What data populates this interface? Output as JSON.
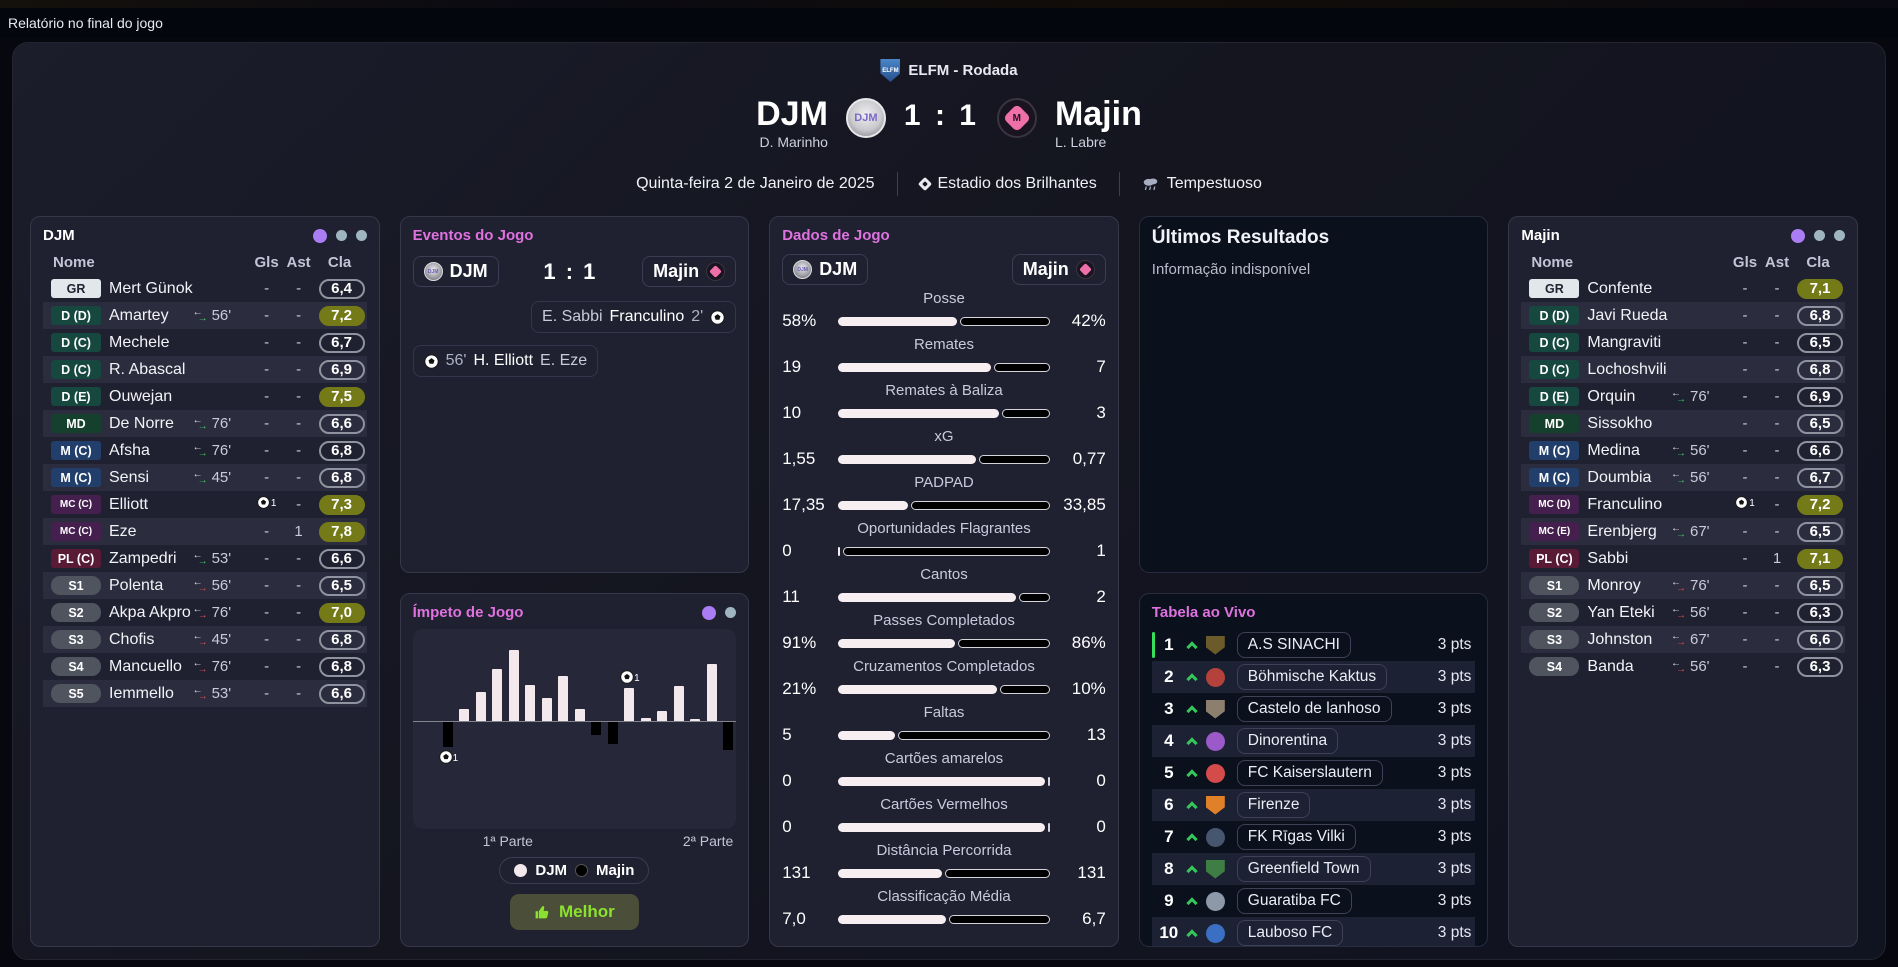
{
  "top_bar": {
    "title": "Relatório no final do jogo"
  },
  "header": {
    "competition": "ELFM - Rodada",
    "competition_badge": "ELFM",
    "home": {
      "name": "DJM",
      "manager": "D. Marinho",
      "crest_text": "DJM"
    },
    "away": {
      "name": "Majin",
      "manager": "L. Labre",
      "crest_text": "M"
    },
    "score": "1 : 1",
    "date": "Quinta-feira 2 de Janeiro de 2025",
    "venue": "Estadio dos Brilhantes",
    "weather": "Tempestuoso"
  },
  "home_squad": {
    "title": "DJM",
    "columns": {
      "name": "Nome",
      "gls": "Gls",
      "ast": "Ast",
      "cla": "Cla"
    },
    "players": [
      {
        "pos": "GR",
        "pos_class": "gr",
        "name": "Mert Günok",
        "gls": "-",
        "ast": "-",
        "cla": "6,4"
      },
      {
        "pos": "D (D)",
        "pos_class": "d",
        "name": "Amartey",
        "sub": "56'",
        "sub_dir": "off",
        "gls": "-",
        "ast": "-",
        "cla": "7,2",
        "cla_class": "hi"
      },
      {
        "pos": "D (C)",
        "pos_class": "d",
        "name": "Mechele",
        "gls": "-",
        "ast": "-",
        "cla": "6,7"
      },
      {
        "pos": "D (C)",
        "pos_class": "d",
        "name": "R. Abascal",
        "gls": "-",
        "ast": "-",
        "cla": "6,9"
      },
      {
        "pos": "D (E)",
        "pos_class": "d",
        "name": "Ouwejan",
        "gls": "-",
        "ast": "-",
        "cla": "7,5",
        "cla_class": "hi"
      },
      {
        "pos": "MD",
        "pos_class": "md",
        "name": "De Norre",
        "sub": "76'",
        "sub_dir": "off",
        "gls": "-",
        "ast": "-",
        "cla": "6,6"
      },
      {
        "pos": "M (C)",
        "pos_class": "m",
        "name": "Afsha",
        "sub": "76'",
        "sub_dir": "off",
        "gls": "-",
        "ast": "-",
        "cla": "6,8"
      },
      {
        "pos": "M (C)",
        "pos_class": "m",
        "name": "Sensi",
        "sub": "45'",
        "sub_dir": "off",
        "gls": "-",
        "ast": "-",
        "cla": "6,8"
      },
      {
        "pos": "MC (C)",
        "pos_class": "mc",
        "name": "Elliott",
        "gls_ball": true,
        "gls_n": "1",
        "ast": "-",
        "cla": "7,3",
        "cla_class": "hi"
      },
      {
        "pos": "MC (C)",
        "pos_class": "mc",
        "name": "Eze",
        "gls": "-",
        "ast": "1",
        "cla": "7,8",
        "cla_class": "hi"
      },
      {
        "pos": "PL (C)",
        "pos_class": "pl",
        "name": "Zampedri",
        "sub": "53'",
        "sub_dir": "off",
        "gls": "-",
        "ast": "-",
        "cla": "6,6"
      },
      {
        "pos": "S1",
        "pos_class": "s",
        "name": "Polenta",
        "sub": "56'",
        "sub_dir": "on",
        "gls": "-",
        "ast": "-",
        "cla": "6,5"
      },
      {
        "pos": "S2",
        "pos_class": "s",
        "name": "Akpa Akpro",
        "sub": "76'",
        "sub_dir": "on",
        "gls": "-",
        "ast": "-",
        "cla": "7,0",
        "cla_class": "hi"
      },
      {
        "pos": "S3",
        "pos_class": "s",
        "name": "Chofis",
        "sub": "45'",
        "sub_dir": "on",
        "gls": "-",
        "ast": "-",
        "cla": "6,8"
      },
      {
        "pos": "S4",
        "pos_class": "s",
        "name": "Mancuello",
        "sub": "76'",
        "sub_dir": "on",
        "gls": "-",
        "ast": "-",
        "cla": "6,8"
      },
      {
        "pos": "S5",
        "pos_class": "s",
        "name": "Iemmello",
        "sub": "53'",
        "sub_dir": "on",
        "gls": "-",
        "ast": "-",
        "cla": "6,6"
      }
    ]
  },
  "away_squad": {
    "title": "Majin",
    "columns": {
      "name": "Nome",
      "gls": "Gls",
      "ast": "Ast",
      "cla": "Cla"
    },
    "players": [
      {
        "pos": "GR",
        "pos_class": "gr",
        "name": "Confente",
        "gls": "-",
        "ast": "-",
        "cla": "7,1",
        "cla_class": "hi"
      },
      {
        "pos": "D (D)",
        "pos_class": "d",
        "name": "Javi Rueda",
        "gls": "-",
        "ast": "-",
        "cla": "6,8"
      },
      {
        "pos": "D (C)",
        "pos_class": "d",
        "name": "Mangraviti",
        "gls": "-",
        "ast": "-",
        "cla": "6,5"
      },
      {
        "pos": "D (C)",
        "pos_class": "d",
        "name": "Lochoshvili",
        "gls": "-",
        "ast": "-",
        "cla": "6,8"
      },
      {
        "pos": "D (E)",
        "pos_class": "d",
        "name": "Orquin",
        "sub": "76'",
        "sub_dir": "off",
        "gls": "-",
        "ast": "-",
        "cla": "6,9"
      },
      {
        "pos": "MD",
        "pos_class": "md",
        "name": "Sissokho",
        "gls": "-",
        "ast": "-",
        "cla": "6,5"
      },
      {
        "pos": "M (C)",
        "pos_class": "m",
        "name": "Medina",
        "sub": "56'",
        "sub_dir": "off",
        "gls": "-",
        "ast": "-",
        "cla": "6,6"
      },
      {
        "pos": "M (C)",
        "pos_class": "m",
        "name": "Doumbia",
        "sub": "56'",
        "sub_dir": "off",
        "gls": "-",
        "ast": "-",
        "cla": "6,7"
      },
      {
        "pos": "MC (D)",
        "pos_class": "mc",
        "name": "Franculino",
        "gls_ball": true,
        "gls_n": "1",
        "ast": "-",
        "cla": "7,2",
        "cla_class": "hi"
      },
      {
        "pos": "MC (E)",
        "pos_class": "mc",
        "name": "Erenbjerg",
        "sub": "67'",
        "sub_dir": "off",
        "gls": "-",
        "ast": "-",
        "cla": "6,5"
      },
      {
        "pos": "PL (C)",
        "pos_class": "pl",
        "name": "Sabbi",
        "gls": "-",
        "ast": "1",
        "cla": "7,1",
        "cla_class": "hi"
      },
      {
        "pos": "S1",
        "pos_class": "s",
        "name": "Monroy",
        "sub": "76'",
        "sub_dir": "on",
        "gls": "-",
        "ast": "-",
        "cla": "6,5"
      },
      {
        "pos": "S2",
        "pos_class": "s",
        "name": "Yan Eteki",
        "sub": "56'",
        "sub_dir": "on",
        "gls": "-",
        "ast": "-",
        "cla": "6,3"
      },
      {
        "pos": "S3",
        "pos_class": "s",
        "name": "Johnston",
        "sub": "67'",
        "sub_dir": "on",
        "gls": "-",
        "ast": "-",
        "cla": "6,6"
      },
      {
        "pos": "S4",
        "pos_class": "s",
        "name": "Banda",
        "sub": "56'",
        "sub_dir": "on",
        "gls": "-",
        "ast": "-",
        "cla": "6,3"
      }
    ]
  },
  "events": {
    "title": "Eventos do Jogo",
    "score": "1 : 1",
    "home_pill": "DJM",
    "away_pill": "Majin",
    "away_goal": {
      "assist": "E. Sabbi",
      "scorer": "Franculino",
      "minute": "2'"
    },
    "home_goal": {
      "minute": "56'",
      "scorer": "H. Elliott",
      "assist": "E. Eze"
    }
  },
  "momentum": {
    "title": "Ímpeto de Jogo",
    "half1_label": "1ª Parte",
    "half2_label": "2ª Parte",
    "legend_home": "DJM",
    "legend_away": "Majin",
    "button_label": "Melhor",
    "chart_data": {
      "type": "bar",
      "description": "match momentum, positive = DJM (white), negative = Majin (black)",
      "values": [
        -3.5,
        1.7,
        4.1,
        7.3,
        10,
        5.1,
        3.3,
        6.4,
        1.7,
        -1.9,
        -3.1,
        4.7,
        0.4,
        1.4,
        4.9,
        0.2,
        8,
        -4
      ],
      "goal_markers": [
        {
          "bar": 0,
          "count": "1"
        },
        {
          "bar": 11,
          "count": "1"
        }
      ],
      "x_labels": [
        "1ª Parte",
        "2ª Parte"
      ],
      "colors": {
        "home": "#f3e9ec",
        "away": "#000000"
      }
    }
  },
  "stats": {
    "title": "Dados de Jogo",
    "home_pill": "DJM",
    "away_pill": "Majin",
    "rows": [
      {
        "label": "Posse",
        "l": "58%",
        "r": "42%",
        "lpct": 56
      },
      {
        "label": "Remates",
        "l": "19",
        "r": "7",
        "lpct": 72
      },
      {
        "label": "Remates à Baliza",
        "l": "10",
        "r": "3",
        "lpct": 76
      },
      {
        "label": "xG",
        "l": "1,55",
        "r": "0,77",
        "lpct": 65
      },
      {
        "label": "PADPAD",
        "l": "17,35",
        "r": "33,85",
        "lpct": 33
      },
      {
        "label": "Oportunidades Flagrantes",
        "l": "0",
        "r": "1",
        "lpct": 1
      },
      {
        "label": "Cantos",
        "l": "11",
        "r": "2",
        "lpct": 84
      },
      {
        "label": "Passes Completados",
        "l": "91%",
        "r": "86%",
        "lpct": 55
      },
      {
        "label": "Cruzamentos Completados",
        "l": "21%",
        "r": "10%",
        "lpct": 75
      },
      {
        "label": "Faltas",
        "l": "5",
        "r": "13",
        "lpct": 27
      },
      {
        "label": "Cartões amarelos",
        "l": "0",
        "r": "0",
        "lpct": 98
      },
      {
        "label": "Cartões Vermelhos",
        "l": "0",
        "r": "0",
        "lpct": 98
      },
      {
        "label": "Distância Percorrida",
        "l": "131",
        "r": "131",
        "lpct": 49
      },
      {
        "label": "Classificação Média",
        "l": "7,0",
        "r": "6,7",
        "lpct": 51
      }
    ]
  },
  "results": {
    "title": "Últimos Resultados",
    "empty_text": "Informação indisponível"
  },
  "live_table": {
    "title": "Tabela ao Vivo",
    "rows": [
      {
        "pos": "1",
        "team": "A.S SINACHI",
        "pts": "3 pts",
        "badge_color": "#6b5a2a",
        "badge_shape": "shield",
        "leader": true
      },
      {
        "pos": "2",
        "team": "Böhmische Kaktus",
        "pts": "3 pts",
        "badge_color": "#b5423a",
        "badge_shape": "circle"
      },
      {
        "pos": "3",
        "team": "Castelo de lanhoso",
        "pts": "3 pts",
        "badge_color": "#8d7f6d",
        "badge_shape": "shield"
      },
      {
        "pos": "4",
        "team": "Dinorentina",
        "pts": "3 pts",
        "badge_color": "#9b59c9",
        "badge_shape": "circle"
      },
      {
        "pos": "5",
        "team": "FC Kaiserslautern",
        "pts": "3 pts",
        "badge_color": "#d44b4b",
        "badge_shape": "circle"
      },
      {
        "pos": "6",
        "team": "Firenze",
        "pts": "3 pts",
        "badge_color": "#e0812a",
        "badge_shape": "shield"
      },
      {
        "pos": "7",
        "team": "FK Rīgas Vilki",
        "pts": "3 pts",
        "badge_color": "#46566e",
        "badge_shape": "circle"
      },
      {
        "pos": "8",
        "team": "Greenfield Town",
        "pts": "3 pts",
        "badge_color": "#3e7d44",
        "badge_shape": "shield"
      },
      {
        "pos": "9",
        "team": "Guaratiba FC",
        "pts": "3 pts",
        "badge_color": "#8d99a8",
        "badge_shape": "circle"
      },
      {
        "pos": "10",
        "team": "Lauboso FC",
        "pts": "3 pts",
        "badge_color": "#3a6fc4",
        "badge_shape": "circle"
      }
    ]
  }
}
